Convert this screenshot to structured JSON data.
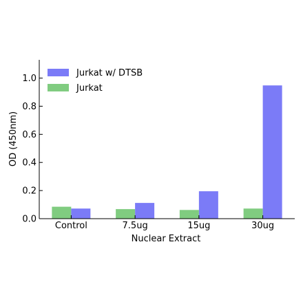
{
  "chart_data": {
    "type": "bar",
    "title": "",
    "xlabel": "Nuclear Extract",
    "ylabel": "OD (450nm)",
    "categories": [
      "Control",
      "7.5ug",
      "15ug",
      "30ug"
    ],
    "ylim": [
      0,
      1.13
    ],
    "yticks": [
      0.0,
      0.2,
      0.4,
      0.6,
      0.8,
      1.0
    ],
    "ytick_labels": [
      "0.0",
      "0.2",
      "0.4",
      "0.6",
      "0.8",
      "1.0"
    ],
    "grid": false,
    "legend_position": "top-left",
    "series": [
      {
        "name": "Jurkat",
        "color": "#80cc80",
        "values": [
          0.085,
          0.068,
          0.062,
          0.072
        ]
      },
      {
        "name": "Jurkat w/ DTSB",
        "color": "#7b7bf7",
        "values": [
          0.072,
          0.112,
          0.195,
          0.948
        ]
      }
    ],
    "legend_order": [
      1,
      0
    ]
  }
}
